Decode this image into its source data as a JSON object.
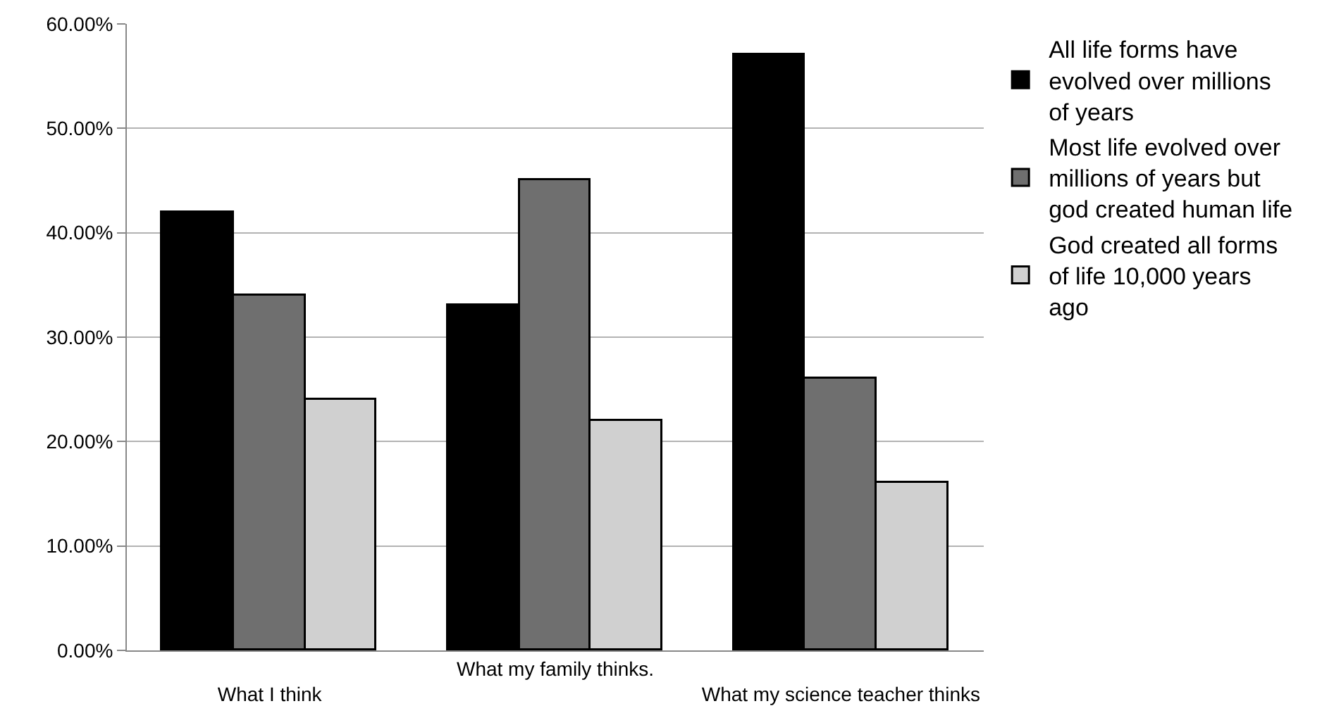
{
  "chart_data": {
    "type": "bar",
    "categories": [
      "What I think",
      "What my family thinks.",
      "What my science teacher thinks"
    ],
    "series": [
      {
        "name": "All life forms have evolved over millions of years",
        "color": "#000000",
        "values": [
          42,
          33,
          57
        ]
      },
      {
        "name": "Most life evolved over millions of years but god created human life",
        "color": "#6f6f6f",
        "values": [
          34,
          45,
          26
        ]
      },
      {
        "name": "God created all forms of life 10,000 years ago",
        "color": "#d0d0d0",
        "values": [
          24,
          22,
          16
        ]
      }
    ],
    "ylim": [
      0,
      60
    ],
    "yticks": [
      {
        "value": 0,
        "label": "0.00%"
      },
      {
        "value": 10,
        "label": "10.00%"
      },
      {
        "value": 20,
        "label": "20.00%"
      },
      {
        "value": 30,
        "label": "30.00%"
      },
      {
        "value": 40,
        "label": "40.00%"
      },
      {
        "value": 50,
        "label": "50.00%"
      },
      {
        "value": 60,
        "label": "60.00%"
      }
    ],
    "grid": "y",
    "legend": "right"
  }
}
